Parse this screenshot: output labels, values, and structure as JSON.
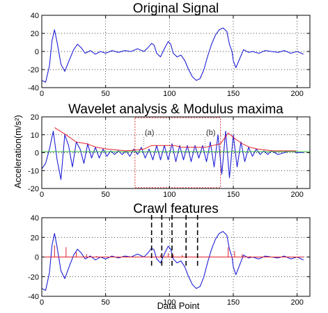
{
  "figure": {
    "ylabel": "Acceleration(m/s²)",
    "xlabel": "Data Point"
  },
  "colors": {
    "signal": "#1f1fd6",
    "features": "#e0202a",
    "baseline": "#27b030",
    "box": "#e03030",
    "markers": "#000000"
  },
  "chart_data": [
    {
      "type": "line",
      "title": "Original Signal",
      "xlim": [
        0,
        210
      ],
      "ylim": [
        -40,
        40
      ],
      "xticks": [
        0,
        50,
        100,
        150,
        200
      ],
      "yticks": [
        -40,
        -20,
        0,
        20,
        40
      ],
      "grid": "dotted",
      "series": [
        {
          "color_key": "signal",
          "x": [
            0,
            3,
            6,
            8,
            10,
            12,
            15,
            18,
            22,
            25,
            28,
            31,
            34,
            38,
            42,
            46,
            50,
            55,
            60,
            65,
            70,
            75,
            80,
            83,
            86,
            88,
            90,
            93,
            96,
            99,
            101,
            103,
            106,
            109,
            112,
            115,
            118,
            121,
            124,
            127,
            130,
            133,
            136,
            139,
            142,
            145,
            147,
            149,
            150,
            152,
            155,
            158,
            162,
            165,
            170,
            175,
            180,
            185,
            190,
            195,
            200,
            205
          ],
          "y": [
            -32,
            -34,
            -16,
            12,
            24,
            10,
            -14,
            -22,
            -8,
            2,
            8,
            4,
            -2,
            1,
            -3,
            0,
            -2,
            1,
            -1,
            1,
            0,
            3,
            0,
            4,
            9,
            7,
            -2,
            -6,
            3,
            11,
            8,
            -2,
            -6,
            -4,
            -10,
            -20,
            -28,
            -32,
            -30,
            -20,
            -5,
            8,
            18,
            24,
            26,
            22,
            8,
            0,
            -10,
            -18,
            -8,
            2,
            -1,
            0,
            -2,
            1,
            0,
            -1,
            1,
            -2,
            0,
            -3
          ]
        }
      ]
    },
    {
      "type": "line",
      "title": "Wavelet analysis & Modulus maxima",
      "xlim": [
        0,
        210
      ],
      "ylim": [
        -20,
        20
      ],
      "xticks": [
        0,
        50,
        100,
        150,
        200
      ],
      "yticks": [
        -20,
        -10,
        0,
        10,
        20
      ],
      "grid": "dotted",
      "annotations": [
        {
          "text": "(a)",
          "x": 80,
          "y": 9.5
        },
        {
          "text": "(b)",
          "x": 128,
          "y": 9.5
        }
      ],
      "box": {
        "x": [
          73,
          140
        ],
        "y": [
          -19.5,
          19.5
        ]
      },
      "series": [
        {
          "color_key": "signal",
          "x": [
            0,
            3,
            6,
            9,
            12,
            15,
            18,
            21,
            24,
            27,
            30,
            33,
            36,
            39,
            42,
            45,
            48,
            51,
            54,
            57,
            60,
            63,
            66,
            69,
            72,
            75,
            78,
            81,
            84,
            87,
            90,
            93,
            96,
            99,
            102,
            105,
            108,
            111,
            114,
            117,
            120,
            123,
            126,
            129,
            132,
            135,
            138,
            141,
            144,
            147,
            150,
            153,
            156,
            159,
            162,
            165,
            168,
            171,
            174,
            177,
            180,
            185,
            190,
            195,
            200,
            205
          ],
          "y": [
            -9,
            -6,
            2,
            12,
            -4,
            -15,
            10,
            4,
            -8,
            6,
            2,
            -6,
            5,
            -3,
            3,
            -3,
            2,
            -2,
            1,
            -1,
            1,
            -1,
            1,
            -2,
            2,
            -1,
            3,
            -3,
            2,
            -4,
            4,
            -4,
            4,
            -4,
            5,
            -5,
            4,
            -4,
            4,
            -5,
            4,
            -3,
            4,
            -5,
            6,
            -8,
            10,
            -12,
            12,
            -14,
            10,
            -8,
            6,
            -5,
            3,
            -2,
            2,
            -1,
            1,
            -1,
            1,
            -1,
            0,
            1,
            0,
            0
          ]
        },
        {
          "color_key": "features",
          "x": [
            10,
            19,
            27,
            35,
            43,
            51,
            59,
            66,
            74,
            80,
            86,
            92,
            98,
            104,
            110,
            116,
            122,
            128,
            134,
            140,
            146,
            151,
            157,
            163,
            169,
            175,
            181,
            187,
            193,
            199
          ],
          "y": [
            14,
            10,
            6,
            5,
            3,
            2,
            1.5,
            1,
            1.5,
            2,
            4,
            4,
            4,
            4,
            3,
            3,
            3,
            3,
            4,
            5,
            11,
            8,
            5,
            3,
            2,
            1.5,
            1,
            1,
            1,
            1
          ]
        },
        {
          "color_key": "baseline",
          "x": [
            0,
            210
          ],
          "y": [
            0.6,
            0.6
          ]
        }
      ]
    },
    {
      "type": "line",
      "title": "Crawl features",
      "xlim": [
        0,
        210
      ],
      "ylim": [
        -40,
        40
      ],
      "xticks": [
        0,
        50,
        100,
        150,
        200
      ],
      "yticks": [
        -40,
        -20,
        0,
        20,
        40
      ],
      "grid": "dotted",
      "markers_x": [
        86,
        94,
        102,
        113,
        122
      ],
      "series": [
        {
          "color_key": "signal",
          "x": [
            0,
            3,
            6,
            8,
            10,
            12,
            15,
            18,
            22,
            25,
            28,
            31,
            34,
            38,
            42,
            46,
            50,
            55,
            60,
            65,
            70,
            75,
            80,
            83,
            86,
            88,
            90,
            93,
            96,
            99,
            101,
            103,
            106,
            109,
            112,
            115,
            118,
            121,
            124,
            127,
            130,
            133,
            136,
            139,
            142,
            145,
            147,
            149,
            150,
            152,
            155,
            158,
            162,
            165,
            170,
            175,
            180,
            185,
            190,
            195,
            200,
            205
          ],
          "y": [
            -32,
            -34,
            -16,
            12,
            24,
            10,
            -14,
            -22,
            -8,
            2,
            8,
            4,
            -2,
            1,
            -3,
            0,
            -2,
            1,
            -1,
            1,
            0,
            3,
            0,
            4,
            9,
            7,
            -2,
            -6,
            3,
            11,
            8,
            -2,
            -6,
            -4,
            -10,
            -20,
            -28,
            -32,
            -30,
            -20,
            -5,
            8,
            18,
            24,
            26,
            22,
            8,
            0,
            -10,
            -18,
            -8,
            2,
            -1,
            0,
            -2,
            1,
            0,
            -1,
            1,
            -2,
            0,
            -3
          ]
        },
        {
          "color_key": "features",
          "spikes": [
            [
              10,
              12
            ],
            [
              19,
              10
            ],
            [
              27,
              5
            ],
            [
              35,
              3
            ],
            [
              43,
              1
            ],
            [
              86,
              3
            ],
            [
              93,
              2
            ],
            [
              99,
              4
            ],
            [
              103,
              3
            ],
            [
              110,
              2
            ],
            [
              146,
              10
            ],
            [
              151,
              6
            ],
            [
              157,
              3
            ],
            [
              163,
              1
            ]
          ]
        }
      ]
    }
  ]
}
